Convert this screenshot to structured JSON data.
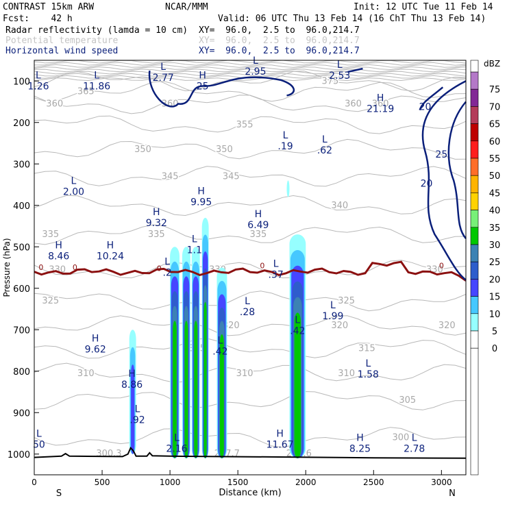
{
  "header": {
    "model": "CONTRAST 15km ARW",
    "fcst": "Fcst:    42 h",
    "center": "NCAR/MMM",
    "init": "Init: 12 UTC Tue 11 Feb 14",
    "valid": "Valid: 06 UTC Thu 13 Feb 14 (16 ChT Thu 13 Feb 14)",
    "fields": [
      {
        "name": "Radar reflectivity (lamda = 10 cm)",
        "xy": "XY=  96.0,  2.5 to  96.0,214.7",
        "color": "#000000"
      },
      {
        "name": "Potential temperature",
        "xy": "XY=  96.0,  2.5 to  96.0,214.7",
        "color": "#c4c4c4"
      },
      {
        "name": "Horizontal wind speed",
        "xy": "XY=  96.0,  2.5 to  96.0,214.7",
        "color": "#0a1f7a"
      }
    ]
  },
  "chart_data": {
    "type": "heatmap",
    "title": "Radar reflectivity / Potential temperature / Horizontal wind speed cross-section",
    "xlabel": "Distance (km)",
    "ylabel": "Pressure (hPa)",
    "xlim": [
      0,
      3180
    ],
    "ylim": [
      1050,
      50
    ],
    "x_ticks": [
      0,
      500,
      1000,
      1500,
      2000,
      2500,
      3000
    ],
    "y_ticks": [
      100,
      200,
      300,
      400,
      500,
      600,
      700,
      800,
      900,
      1000
    ],
    "x_end_labels": {
      "left": "S",
      "right": "N"
    },
    "colorbar": {
      "title": "dBZ",
      "levels": [
        0,
        5,
        10,
        15,
        20,
        25,
        30,
        35,
        40,
        45,
        50,
        55,
        60,
        65,
        70,
        75
      ],
      "colors": [
        "#ffffff",
        "#96ffff",
        "#46c8ff",
        "#4646ff",
        "#2e5dcc",
        "#3c82b4",
        "#00c800",
        "#78f078",
        "#ffd200",
        "#ffb400",
        "#ff6e28",
        "#ff1e1e",
        "#be0000",
        "#b43c5a",
        "#822896",
        "#b478c8"
      ]
    },
    "reflectivity_cells": [
      {
        "x": [
          1000,
          1070
        ],
        "p": [
          1010,
          500
        ],
        "max_dbz": 30
      },
      {
        "x": [
          1090,
          1150
        ],
        "p": [
          1010,
          500
        ],
        "max_dbz": 30
      },
      {
        "x": [
          1160,
          1220
        ],
        "p": [
          1010,
          500
        ],
        "max_dbz": 30
      },
      {
        "x": [
          1235,
          1285
        ],
        "p": [
          1010,
          430
        ],
        "max_dbz": 30
      },
      {
        "x": [
          1345,
          1420
        ],
        "p": [
          1010,
          550
        ],
        "max_dbz": 30
      },
      {
        "x": [
          1880,
          2000
        ],
        "p": [
          1010,
          470
        ],
        "max_dbz": 30
      },
      {
        "x": [
          700,
          750
        ],
        "p": [
          1000,
          700
        ],
        "max_dbz": 15
      },
      {
        "x": [
          1860,
          1880
        ],
        "p": [
          380,
          340
        ],
        "max_dbz": 5
      }
    ],
    "theta_contours": [
      300,
      305,
      310,
      315,
      320,
      325,
      330,
      335,
      340,
      345,
      350,
      355,
      360,
      365,
      375
    ],
    "zero_line_label": "0",
    "wind_contours": [
      20,
      25
    ],
    "highs": [
      {
        "x": 1240,
        "p": 110,
        "value": "25"
      },
      {
        "x": 2550,
        "p": 165,
        "value": "21.19"
      },
      {
        "x": 1230,
        "p": 390,
        "value": "9.95"
      },
      {
        "x": 900,
        "p": 440,
        "value": "9.32"
      },
      {
        "x": 1650,
        "p": 445,
        "value": "6.49"
      },
      {
        "x": 180,
        "p": 520,
        "value": "8.46"
      },
      {
        "x": 560,
        "p": 520,
        "value": "10.24"
      },
      {
        "x": 450,
        "p": 745,
        "value": "9.62"
      },
      {
        "x": 720,
        "p": 830,
        "value": "8.86"
      },
      {
        "x": 1810,
        "p": 975,
        "value": "11.67"
      },
      {
        "x": 2400,
        "p": 985,
        "value": "8.25"
      }
    ],
    "lows": [
      {
        "x": 30,
        "p": 110,
        "value": "1.26"
      },
      {
        "x": 460,
        "p": 110,
        "value": "11.86"
      },
      {
        "x": 950,
        "p": 90,
        "value": "2.77"
      },
      {
        "x": 1630,
        "p": 75,
        "value": "2.95"
      },
      {
        "x": 2250,
        "p": 85,
        "value": "2.53"
      },
      {
        "x": 1850,
        "p": 255,
        "value": ".19"
      },
      {
        "x": 2140,
        "p": 265,
        "value": ".62"
      },
      {
        "x": 290,
        "p": 365,
        "value": "2.00"
      },
      {
        "x": 1180,
        "p": 505,
        "value": "1.1"
      },
      {
        "x": 980,
        "p": 560,
        "value": ".2"
      },
      {
        "x": 1780,
        "p": 565,
        "value": ".37"
      },
      {
        "x": 1570,
        "p": 655,
        "value": ".28"
      },
      {
        "x": 2200,
        "p": 665,
        "value": "1.99"
      },
      {
        "x": 1940,
        "p": 700,
        "value": ".42"
      },
      {
        "x": 1370,
        "p": 750,
        "value": ".42"
      },
      {
        "x": 2460,
        "p": 805,
        "value": "1.58"
      },
      {
        "x": 760,
        "p": 915,
        "value": ".92"
      },
      {
        "x": 1050,
        "p": 985,
        "value": "2.16"
      },
      {
        "x": 35,
        "p": 975,
        "value": "50"
      },
      {
        "x": 2800,
        "p": 985,
        "value": "2.78"
      }
    ],
    "terrain_label": "",
    "theta_labels_extra": [
      "300.3",
      "297.7",
      "299.6"
    ]
  }
}
